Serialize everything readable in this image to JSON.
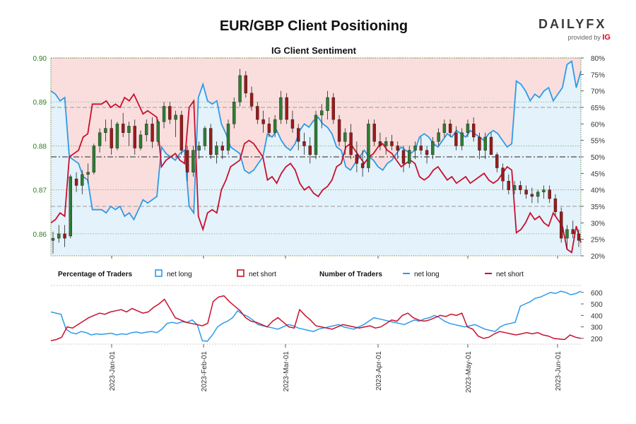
{
  "title": "EUR/GBP Client Positioning",
  "subtitle": "IG Client Sentiment",
  "brand": {
    "name": "DAILYFX",
    "sub": "provided by",
    "partner": "IG"
  },
  "legend": {
    "pct_heading": "Percentage of Traders",
    "pct_long": "net long",
    "pct_short": "net short",
    "num_heading": "Number of Traders",
    "num_long": "net long",
    "num_short": "net short"
  },
  "colors": {
    "long": "#2c9be8",
    "short": "#c8102e",
    "candle_up": "#2e7d32",
    "candle_down": "#9b1b1b",
    "long_fill": "#e4f2fb",
    "short_fill": "#fadede",
    "price_axis": "#2e7d1a"
  },
  "chart_data": [
    {
      "type": "candlestick",
      "name": "price",
      "y_ticks": [
        "0.86",
        "0.87",
        "0.88",
        "0.89",
        "0.90"
      ],
      "ylim": [
        0.855,
        0.9
      ],
      "ohlc": [
        [
          0.8585,
          0.8605,
          0.8555,
          0.859
        ],
        [
          0.859,
          0.862,
          0.858,
          0.86
        ],
        [
          0.86,
          0.862,
          0.857,
          0.859
        ],
        [
          0.8595,
          0.8735,
          0.859,
          0.873
        ],
        [
          0.8725,
          0.874,
          0.8695,
          0.871
        ],
        [
          0.871,
          0.8745,
          0.869,
          0.8735
        ],
        [
          0.8735,
          0.876,
          0.8715,
          0.874
        ],
        [
          0.874,
          0.8805,
          0.8735,
          0.88
        ],
        [
          0.88,
          0.884,
          0.8785,
          0.883
        ],
        [
          0.883,
          0.886,
          0.881,
          0.884
        ],
        [
          0.884,
          0.886,
          0.878,
          0.8795
        ],
        [
          0.8795,
          0.8855,
          0.879,
          0.885
        ],
        [
          0.885,
          0.8875,
          0.882,
          0.883
        ],
        [
          0.883,
          0.8855,
          0.88,
          0.8845
        ],
        [
          0.8845,
          0.886,
          0.878,
          0.8795
        ],
        [
          0.8795,
          0.8835,
          0.879,
          0.8825
        ],
        [
          0.8825,
          0.886,
          0.881,
          0.885
        ],
        [
          0.885,
          0.8865,
          0.8795,
          0.881
        ],
        [
          0.881,
          0.886,
          0.88,
          0.8855
        ],
        [
          0.8855,
          0.89,
          0.884,
          0.889
        ],
        [
          0.889,
          0.89,
          0.885,
          0.886
        ],
        [
          0.886,
          0.888,
          0.882,
          0.887
        ],
        [
          0.887,
          0.888,
          0.878,
          0.879
        ],
        [
          0.879,
          0.88,
          0.872,
          0.874
        ],
        [
          0.874,
          0.88,
          0.873,
          0.879
        ],
        [
          0.879,
          0.881,
          0.877,
          0.88
        ],
        [
          0.88,
          0.8845,
          0.879,
          0.884
        ],
        [
          0.884,
          0.885,
          0.877,
          0.878
        ],
        [
          0.878,
          0.881,
          0.876,
          0.88
        ],
        [
          0.88,
          0.881,
          0.877,
          0.879
        ],
        [
          0.879,
          0.886,
          0.878,
          0.885
        ],
        [
          0.885,
          0.891,
          0.884,
          0.89
        ],
        [
          0.89,
          0.8975,
          0.889,
          0.896
        ],
        [
          0.896,
          0.897,
          0.891,
          0.892
        ],
        [
          0.892,
          0.8935,
          0.888,
          0.889
        ],
        [
          0.889,
          0.89,
          0.885,
          0.886
        ],
        [
          0.886,
          0.888,
          0.883,
          0.885
        ],
        [
          0.885,
          0.8865,
          0.882,
          0.883
        ],
        [
          0.883,
          0.887,
          0.882,
          0.886
        ],
        [
          0.886,
          0.8925,
          0.885,
          0.891
        ],
        [
          0.891,
          0.892,
          0.885,
          0.886
        ],
        [
          0.886,
          0.888,
          0.883,
          0.884
        ],
        [
          0.884,
          0.885,
          0.879,
          0.881
        ],
        [
          0.881,
          0.883,
          0.878,
          0.88
        ],
        [
          0.88,
          0.882,
          0.876,
          0.878
        ],
        [
          0.878,
          0.888,
          0.877,
          0.887
        ],
        [
          0.887,
          0.8895,
          0.884,
          0.888
        ],
        [
          0.888,
          0.8925,
          0.886,
          0.891
        ],
        [
          0.891,
          0.892,
          0.885,
          0.886
        ],
        [
          0.886,
          0.887,
          0.88,
          0.881
        ],
        [
          0.881,
          0.884,
          0.878,
          0.883
        ],
        [
          0.883,
          0.885,
          0.877,
          0.878
        ],
        [
          0.878,
          0.881,
          0.874,
          0.876
        ],
        [
          0.876,
          0.879,
          0.873,
          0.875
        ],
        [
          0.875,
          0.886,
          0.874,
          0.885
        ],
        [
          0.885,
          0.886,
          0.88,
          0.881
        ],
        [
          0.881,
          0.883,
          0.879,
          0.88
        ],
        [
          0.88,
          0.882,
          0.878,
          0.881
        ],
        [
          0.881,
          0.8825,
          0.879,
          0.88
        ],
        [
          0.88,
          0.881,
          0.877,
          0.879
        ],
        [
          0.879,
          0.88,
          0.874,
          0.876
        ],
        [
          0.876,
          0.88,
          0.875,
          0.879
        ],
        [
          0.879,
          0.881,
          0.877,
          0.88
        ],
        [
          0.88,
          0.882,
          0.878,
          0.879
        ],
        [
          0.879,
          0.88,
          0.876,
          0.878
        ],
        [
          0.878,
          0.882,
          0.877,
          0.881
        ],
        [
          0.881,
          0.884,
          0.88,
          0.883
        ],
        [
          0.883,
          0.886,
          0.882,
          0.885
        ],
        [
          0.885,
          0.886,
          0.882,
          0.883
        ],
        [
          0.883,
          0.8845,
          0.879,
          0.88
        ],
        [
          0.88,
          0.884,
          0.879,
          0.883
        ],
        [
          0.883,
          0.886,
          0.882,
          0.885
        ],
        [
          0.885,
          0.8865,
          0.881,
          0.882
        ],
        [
          0.882,
          0.883,
          0.877,
          0.879
        ],
        [
          0.879,
          0.883,
          0.877,
          0.882
        ],
        [
          0.882,
          0.883,
          0.878,
          0.878
        ],
        [
          0.878,
          0.8785,
          0.874,
          0.875
        ],
        [
          0.875,
          0.876,
          0.87,
          0.872
        ],
        [
          0.872,
          0.8735,
          0.869,
          0.87
        ],
        [
          0.87,
          0.872,
          0.869,
          0.871
        ],
        [
          0.871,
          0.872,
          0.869,
          0.87
        ],
        [
          0.87,
          0.871,
          0.868,
          0.869
        ],
        [
          0.869,
          0.8705,
          0.867,
          0.8685
        ],
        [
          0.8685,
          0.87,
          0.867,
          0.8695
        ],
        [
          0.8695,
          0.871,
          0.868,
          0.87
        ],
        [
          0.87,
          0.871,
          0.867,
          0.868
        ],
        [
          0.868,
          0.869,
          0.864,
          0.865
        ],
        [
          0.865,
          0.866,
          0.858,
          0.859
        ],
        [
          0.859,
          0.862,
          0.8565,
          0.861
        ],
        [
          0.861,
          0.863,
          0.859,
          0.86
        ],
        [
          0.86,
          0.861,
          0.857,
          0.8585
        ]
      ]
    },
    {
      "type": "line",
      "name": "percentage_of_traders",
      "y_ticks": [
        "20%",
        "25%",
        "30%",
        "35%",
        "40%",
        "45%",
        "50%",
        "55%",
        "60%",
        "65%",
        "70%",
        "75%",
        "80%"
      ],
      "ylim": [
        20,
        80
      ],
      "series": [
        {
          "name": "net long",
          "values": [
            70,
            69,
            67,
            68,
            50,
            49,
            48,
            44,
            43,
            34,
            34,
            34,
            33,
            35,
            34,
            35,
            32,
            33,
            31,
            34,
            37,
            36,
            37,
            38,
            53,
            51,
            50,
            49,
            51,
            52,
            35,
            33,
            68,
            72,
            67,
            66,
            67,
            60,
            57,
            53,
            52,
            51,
            46,
            45,
            46,
            48,
            50,
            57,
            56,
            58,
            55,
            53,
            52,
            54,
            58,
            60,
            59,
            61,
            62,
            60,
            59,
            57,
            53,
            52,
            47,
            46,
            48,
            50,
            52,
            50,
            49,
            47,
            46,
            48,
            49,
            51,
            53,
            52,
            51,
            52,
            56,
            57,
            56,
            54,
            53,
            55,
            57,
            56,
            58,
            57,
            56,
            58,
            57,
            56,
            55,
            57,
            58,
            57,
            55,
            53,
            54,
            73,
            72,
            70,
            67,
            69,
            68,
            70,
            71,
            67,
            69,
            71,
            78,
            79,
            71,
            76
          ]
        },
        {
          "name": "net short",
          "values": [
            30,
            31,
            33,
            32,
            50,
            51,
            52,
            56,
            57,
            66,
            66,
            66,
            67,
            65,
            66,
            65,
            68,
            67,
            69,
            66,
            63,
            64,
            63,
            62,
            47,
            49,
            50,
            51,
            49,
            48,
            65,
            67,
            32,
            28,
            33,
            34,
            33,
            40,
            43,
            47,
            48,
            49,
            54,
            55,
            54,
            52,
            50,
            43,
            44,
            42,
            45,
            47,
            48,
            46,
            42,
            40,
            41,
            39,
            38,
            40,
            41,
            43,
            47,
            48,
            53,
            54,
            52,
            50,
            48,
            50,
            51,
            53,
            54,
            52,
            51,
            49,
            47,
            48,
            49,
            48,
            44,
            43,
            44,
            46,
            47,
            45,
            43,
            44,
            42,
            43,
            44,
            42,
            43,
            44,
            45,
            43,
            42,
            43,
            45,
            47,
            46,
            27,
            28,
            30,
            33,
            31,
            32,
            30,
            29,
            33,
            31,
            29,
            22,
            21,
            29,
            24
          ]
        }
      ]
    },
    {
      "type": "line",
      "name": "number_of_traders",
      "y_ticks": [
        "200",
        "300",
        "400",
        "500",
        "600"
      ],
      "ylim": [
        150,
        660
      ],
      "series": [
        {
          "name": "net long",
          "values": [
            430,
            420,
            410,
            280,
            250,
            240,
            260,
            250,
            230,
            240,
            235,
            240,
            245,
            230,
            240,
            235,
            250,
            255,
            245,
            255,
            260,
            250,
            280,
            330,
            340,
            330,
            345,
            340,
            360,
            320,
            180,
            175,
            230,
            300,
            330,
            350,
            380,
            440,
            410,
            390,
            360,
            320,
            310,
            300,
            290,
            280,
            300,
            320,
            310,
            290,
            280,
            270,
            260,
            280,
            290,
            300,
            310,
            320,
            300,
            290,
            280,
            300,
            320,
            350,
            380,
            370,
            360,
            350,
            340,
            330,
            320,
            340,
            360,
            350,
            370,
            380,
            400,
            380,
            350,
            330,
            320,
            310,
            300,
            310,
            320,
            300,
            280,
            270,
            260,
            300,
            320,
            330,
            340,
            480,
            500,
            520,
            550,
            560,
            580,
            600,
            590,
            610,
            600,
            580,
            590,
            610
          ]
        },
        {
          "name": "net short",
          "values": [
            180,
            190,
            210,
            300,
            290,
            320,
            350,
            380,
            400,
            420,
            410,
            430,
            440,
            450,
            430,
            460,
            440,
            420,
            430,
            470,
            500,
            540,
            460,
            380,
            360,
            340,
            330,
            320,
            310,
            330,
            520,
            560,
            570,
            520,
            480,
            440,
            380,
            350,
            340,
            320,
            300,
            350,
            380,
            340,
            300,
            290,
            450,
            400,
            360,
            310,
            300,
            290,
            280,
            300,
            320,
            310,
            300,
            290,
            300,
            310,
            290,
            300,
            330,
            360,
            350,
            400,
            420,
            380,
            360,
            350,
            360,
            380,
            400,
            390,
            410,
            400,
            420,
            300,
            280,
            220,
            200,
            210,
            240,
            260,
            250,
            240,
            230,
            240,
            250,
            240,
            250,
            230,
            220,
            200,
            195,
            190,
            230,
            210,
            200
          ]
        }
      ]
    }
  ],
  "x_ticks": [
    "2023-Jan-01",
    "2023-Feb-01",
    "2023-Mar-01",
    "2023-Apr-01",
    "2023-May-01",
    "2023-Jun-01"
  ]
}
